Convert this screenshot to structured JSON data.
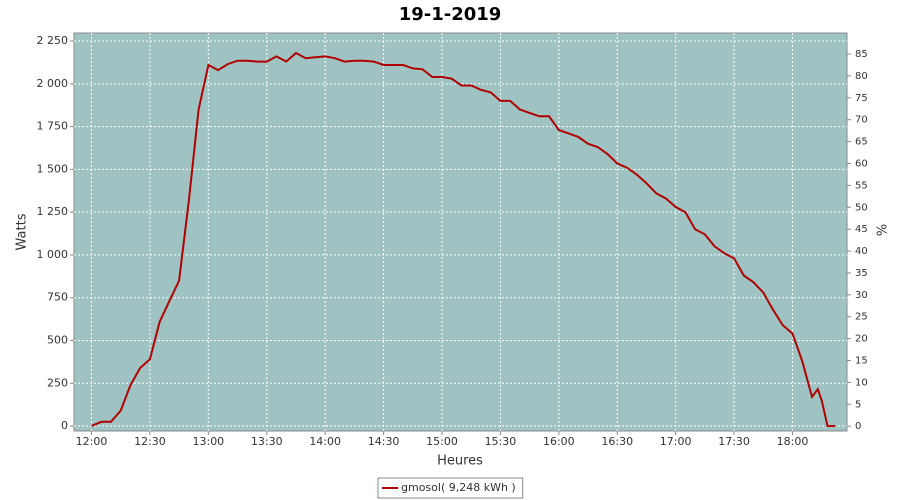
{
  "chart_data": {
    "type": "line",
    "title": "19-1-2019",
    "x_label": "Heures",
    "y_label": "Watts",
    "y2_label": "%",
    "background": "#9fc3c3",
    "grid": true,
    "legend": "bottom",
    "xlim": [
      "11:51",
      "18:28"
    ],
    "xticks": [
      "12:00",
      "12:30",
      "13:00",
      "13:30",
      "14:00",
      "14:30",
      "15:00",
      "15:30",
      "16:00",
      "16:30",
      "17:00",
      "17:30",
      "18:00"
    ],
    "ylim": [
      -29,
      2297
    ],
    "yticks": [
      0,
      250,
      500,
      750,
      {
        "value": 1000,
        "label": "1 000"
      },
      {
        "value": 1250,
        "label": "1 250"
      },
      {
        "value": 1500,
        "label": "1 500"
      },
      {
        "value": 1750,
        "label": "1 750"
      },
      {
        "value": 2000,
        "label": "2 000"
      },
      {
        "value": 2250,
        "label": "2 250"
      }
    ],
    "y2lim": [
      -1.1,
      89.8
    ],
    "y2ticks": [
      0,
      5,
      10,
      15,
      20,
      25,
      30,
      35,
      40,
      45,
      50,
      55,
      60,
      65,
      70,
      75,
      80,
      85
    ],
    "x": [
      "12:00",
      "12:05",
      "12:10",
      "12:15",
      "12:20",
      "12:25",
      "12:30",
      "12:35",
      "12:40",
      "12:45",
      "12:50",
      "12:55",
      "13:00",
      "13:05",
      "13:10",
      "13:15",
      "13:20",
      "13:25",
      "13:30",
      "13:35",
      "13:40",
      "13:45",
      "13:50",
      "13:55",
      "14:00",
      "14:05",
      "14:10",
      "14:15",
      "14:20",
      "14:25",
      "14:30",
      "14:35",
      "14:40",
      "14:45",
      "14:50",
      "14:55",
      "15:00",
      "15:05",
      "15:10",
      "15:15",
      "15:20",
      "15:25",
      "15:30",
      "15:35",
      "15:40",
      "15:45",
      "15:50",
      "15:55",
      "16:00",
      "16:05",
      "16:10",
      "16:15",
      "16:20",
      "16:25",
      "16:30",
      "16:35",
      "16:40",
      "16:45",
      "16:50",
      "16:55",
      "17:00",
      "17:05",
      "17:10",
      "17:15",
      "17:20",
      "17:25",
      "17:30",
      "17:35",
      "17:40",
      "17:45",
      "17:50",
      "17:55",
      "18:00",
      "18:05",
      "18:10",
      "18:13",
      "18:15",
      "18:18",
      "18:22"
    ],
    "series": [
      {
        "name": "gmosol( 9,248 kWh )",
        "color": "#b00000",
        "values": [
          0,
          25,
          25,
          90,
          240,
          340,
          390,
          610,
          730,
          850,
          1320,
          1850,
          2110,
          2080,
          2115,
          2135,
          2135,
          2130,
          2130,
          2160,
          2130,
          2180,
          2150,
          2155,
          2160,
          2150,
          2130,
          2135,
          2135,
          2130,
          2110,
          2110,
          2110,
          2090,
          2085,
          2040,
          2040,
          2030,
          1990,
          1990,
          1965,
          1950,
          1900,
          1900,
          1850,
          1830,
          1810,
          1810,
          1730,
          1710,
          1690,
          1650,
          1630,
          1590,
          1535,
          1510,
          1470,
          1420,
          1360,
          1330,
          1280,
          1250,
          1150,
          1120,
          1050,
          1010,
          980,
          880,
          840,
          780,
          680,
          590,
          540,
          380,
          170,
          215,
          150,
          0,
          0
        ]
      }
    ]
  }
}
